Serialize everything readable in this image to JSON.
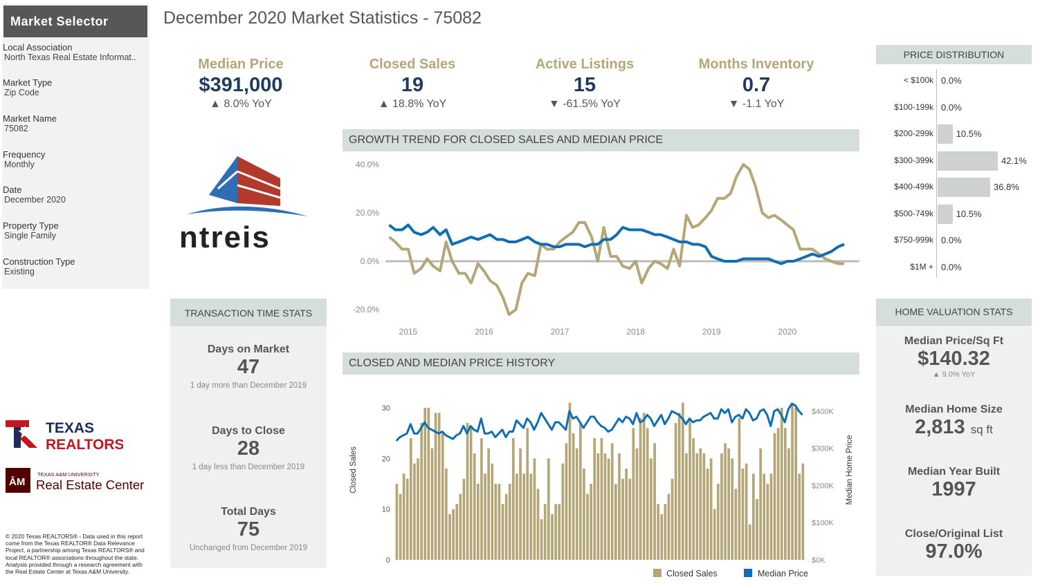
{
  "title": "December 2020 Market Statistics - 75082",
  "sidebar": {
    "header": "Market Selector",
    "fields": [
      {
        "label": "Local Association",
        "value": "North Texas Real Estate Informat.."
      },
      {
        "label": "Market Type",
        "value": "Zip Code"
      },
      {
        "label": "Market Name",
        "value": "75082"
      },
      {
        "label": "Frequency",
        "value": "Monthly"
      },
      {
        "label": "Date",
        "value": "December 2020"
      },
      {
        "label": "Property Type",
        "value": "Single Family"
      },
      {
        "label": "Construction Type",
        "value": "Existing"
      }
    ]
  },
  "logos": {
    "ntreis": "ntreis",
    "texas_realtors": [
      "TEXAS",
      "REALTORS"
    ],
    "tamu_small": "TEXAS A&M UNIVERSITY",
    "tamu_large": "Real Estate Center"
  },
  "copyright": "© 2020 Texas REALTORS® - Data used in this report come from the Texas REALTOR® Data Relevance Project, a partnership among Texas REALTORS® and local REALTOR® associations throughout the state. Analysis provided through a research agreement with the Real Estate Center at Texas A&M University.",
  "kpis": [
    {
      "label": "Median Price",
      "value": "$391,000",
      "yoy": "▲ 8.0% YoY"
    },
    {
      "label": "Closed Sales",
      "value": "19",
      "yoy": "▲ 18.8% YoY"
    },
    {
      "label": "Active Listings",
      "value": "15",
      "yoy": "▼ -61.5% YoY"
    },
    {
      "label": "Months Inventory",
      "value": "0.7",
      "yoy": "▼ -1.1 YoY"
    }
  ],
  "transaction": {
    "header": "TRANSACTION TIME STATS",
    "items": [
      {
        "label": "Days on Market",
        "value": "47",
        "note": "1 day more than December 2019"
      },
      {
        "label": "Days to Close",
        "value": "28",
        "note": "1 day less than December 2019"
      },
      {
        "label": "Total Days",
        "value": "75",
        "note": "Unchanged from December 2019"
      }
    ]
  },
  "valuation": {
    "header": "HOME VALUATION STATS",
    "price_sqft": {
      "label": "Median Price/Sq Ft",
      "value": "$140.32",
      "note": "▲ 9.0% YoY"
    },
    "home_size": {
      "label": "Median Home Size",
      "value": "2,813",
      "unit": "sq ft"
    },
    "year_built": {
      "label": "Median Year Built",
      "value": "1997"
    },
    "close_list": {
      "label": "Close/Original List",
      "value": "97.0%"
    }
  },
  "price_distribution": {
    "header": "PRICE DISTRIBUTION",
    "rows": [
      {
        "label": "< $100k",
        "value": "0.0%",
        "pct": 0.0
      },
      {
        "label": "$100-199k",
        "value": "0.0%",
        "pct": 0.0
      },
      {
        "label": "$200-299k",
        "value": "10.5%",
        "pct": 10.5
      },
      {
        "label": "$300-399k",
        "value": "42.1%",
        "pct": 42.1
      },
      {
        "label": "$400-499k",
        "value": "36.8%",
        "pct": 36.8
      },
      {
        "label": "$500-749k",
        "value": "10.5%",
        "pct": 10.5
      },
      {
        "label": "$750-999k",
        "value": "0.0%",
        "pct": 0.0
      },
      {
        "label": "$1M +",
        "value": "0.0%",
        "pct": 0.0
      }
    ]
  },
  "colors": {
    "gold": "#b5a677",
    "blue": "#0f6db4",
    "navy": "#1f3a5f",
    "header_bg": "#d5ded9",
    "panel_bg": "#eef1ef"
  },
  "chart_data": [
    {
      "type": "line",
      "title": "GROWTH TREND FOR CLOSED SALES AND MEDIAN PRICE",
      "y_ticks": [
        "40.0%",
        "20.0%",
        "0.0%",
        "-20.0%"
      ],
      "x_ticks": [
        "2015",
        "2016",
        "2017",
        "2018",
        "2019",
        "2020"
      ],
      "ylim": [
        -20,
        40
      ],
      "xlim": [
        2014.7,
        2020.95
      ],
      "series": [
        {
          "color": "#b5a677",
          "x": [
            2014.75,
            2014.83,
            2014.92,
            2015.0,
            2015.08,
            2015.17,
            2015.25,
            2015.33,
            2015.42,
            2015.5,
            2015.58,
            2015.67,
            2015.75,
            2015.83,
            2015.92,
            2016.0,
            2016.08,
            2016.17,
            2016.25,
            2016.33,
            2016.42,
            2016.5,
            2016.58,
            2016.67,
            2016.75,
            2016.83,
            2016.92,
            2017.0,
            2017.08,
            2017.17,
            2017.25,
            2017.33,
            2017.42,
            2017.5,
            2017.58,
            2017.67,
            2017.75,
            2017.83,
            2017.92,
            2018.0,
            2018.08,
            2018.17,
            2018.25,
            2018.33,
            2018.42,
            2018.5,
            2018.58,
            2018.67,
            2018.75,
            2018.83,
            2018.92,
            2019.0,
            2019.08,
            2019.17,
            2019.25,
            2019.33,
            2019.42,
            2019.5,
            2019.58,
            2019.67,
            2019.75,
            2019.83,
            2019.92,
            2020.0,
            2020.08,
            2020.17,
            2020.25,
            2020.33,
            2020.42,
            2020.5,
            2020.58,
            2020.67,
            2020.75
          ],
          "y": [
            10,
            8,
            5,
            5,
            -5,
            -3,
            1,
            -2,
            -4,
            8,
            0,
            -5,
            -5,
            -9,
            -1,
            -4,
            -8,
            -10,
            -15,
            -22,
            -20,
            -9,
            -5,
            -6,
            7,
            5,
            5,
            8,
            10,
            12,
            16,
            16,
            10,
            0,
            14,
            2,
            2,
            -2,
            -3,
            0,
            -9,
            -3,
            0,
            -1,
            -3,
            5,
            -2,
            19,
            14,
            15,
            18,
            21,
            26,
            26,
            28,
            35,
            40,
            38,
            31,
            20,
            18,
            19,
            17,
            15,
            13,
            5,
            5,
            5,
            3,
            1,
            0,
            -1,
            -1
          ]
        },
        {
          "color": "#0f6db4",
          "x": [
            2014.75,
            2014.83,
            2014.92,
            2015.0,
            2015.08,
            2015.17,
            2015.25,
            2015.33,
            2015.42,
            2015.5,
            2015.58,
            2015.67,
            2015.75,
            2015.83,
            2015.92,
            2016.0,
            2016.08,
            2016.17,
            2016.25,
            2016.33,
            2016.42,
            2016.5,
            2016.58,
            2016.67,
            2016.75,
            2016.83,
            2016.92,
            2017.0,
            2017.08,
            2017.17,
            2017.25,
            2017.33,
            2017.42,
            2017.5,
            2017.58,
            2017.67,
            2017.75,
            2017.83,
            2017.92,
            2018.0,
            2018.08,
            2018.17,
            2018.25,
            2018.33,
            2018.42,
            2018.5,
            2018.58,
            2018.67,
            2018.75,
            2018.83,
            2018.92,
            2019.0,
            2019.08,
            2019.17,
            2019.25,
            2019.33,
            2019.42,
            2019.5,
            2019.58,
            2019.67,
            2019.75,
            2019.83,
            2019.92,
            2020.0,
            2020.08,
            2020.17,
            2020.25,
            2020.33,
            2020.42,
            2020.5,
            2020.58,
            2020.67,
            2020.75
          ],
          "y": [
            15,
            13,
            13,
            15,
            12,
            11,
            12,
            14,
            11,
            13,
            7,
            8,
            9,
            10,
            9,
            10,
            11,
            9,
            9,
            8,
            8,
            9,
            10,
            8,
            7,
            7,
            6,
            6,
            7,
            7,
            7,
            6,
            7,
            7,
            9,
            9,
            11,
            14,
            13,
            13,
            13,
            12,
            11,
            11,
            10,
            9,
            8,
            8,
            7,
            7,
            6,
            2,
            1,
            0,
            0,
            0,
            1,
            1,
            1,
            1,
            1,
            0,
            -1,
            0,
            0,
            1,
            2,
            3,
            2,
            3,
            4,
            6,
            7
          ]
        }
      ]
    },
    {
      "type": "bar",
      "title": "CLOSED AND MEDIAN PRICE HISTORY",
      "ylabel": "Closed Sales",
      "y2label": "Median Home Price",
      "y_ticks": [
        "30",
        "20",
        "10",
        "0"
      ],
      "y2_ticks": [
        "$400K",
        "$300K",
        "$200K",
        "$100K",
        "$0K"
      ],
      "ylim": [
        0,
        33
      ],
      "y2lim": [
        0,
        450000
      ],
      "legend": [
        "Closed Sales",
        "Median Price"
      ],
      "legend_position": "bottom-right",
      "closed_sales": [
        15,
        13,
        17,
        16,
        24,
        19,
        20,
        27,
        30,
        30,
        22,
        29,
        29,
        25,
        18,
        9,
        10,
        11,
        13,
        16,
        27,
        26,
        21,
        15,
        24,
        17,
        22,
        19,
        15,
        15,
        11,
        13,
        15,
        24,
        17,
        22,
        17,
        26,
        17,
        20,
        14,
        8,
        11,
        20,
        9,
        11,
        11,
        19,
        23,
        31,
        25,
        22,
        27,
        18,
        13,
        15,
        24,
        21,
        24,
        21,
        20,
        23,
        15,
        21,
        16,
        18,
        16,
        26,
        22,
        28,
        29,
        26,
        20,
        23,
        11,
        9,
        11,
        13,
        16,
        27,
        29,
        31,
        21,
        28,
        24,
        21,
        22,
        21,
        18,
        20,
        10,
        15,
        21,
        23,
        22,
        20,
        14,
        28,
        18,
        19,
        7,
        17,
        12,
        22,
        17,
        15,
        17,
        25,
        26,
        30,
        26,
        22,
        31,
        30,
        17,
        19
      ],
      "median_price": [
        320,
        330,
        335,
        340,
        365,
        340,
        340,
        355,
        370,
        355,
        350,
        345,
        340,
        345,
        335,
        330,
        325,
        335,
        340,
        360,
        340,
        360,
        350,
        345,
        380,
        340,
        340,
        345,
        330,
        340,
        350,
        330,
        345,
        345,
        375,
        365,
        355,
        380,
        370,
        350,
        370,
        395,
        380,
        365,
        350,
        370,
        370,
        360,
        350,
        400,
        380,
        385,
        370,
        355,
        370,
        385,
        385,
        370,
        360,
        355,
        345,
        350,
        365,
        380,
        370,
        385,
        380,
        365,
        395,
        370,
        375,
        390,
        380,
        360,
        375,
        390,
        365,
        380,
        400,
        395,
        390,
        380,
        365,
        380,
        370,
        375,
        375,
        385,
        390,
        395,
        380,
        380,
        405,
        395,
        405,
        370,
        385,
        390,
        380,
        405,
        395,
        375,
        380,
        400,
        405,
        390,
        360,
        400,
        405,
        390,
        370,
        405,
        420,
        415,
        400,
        390
      ]
    }
  ]
}
